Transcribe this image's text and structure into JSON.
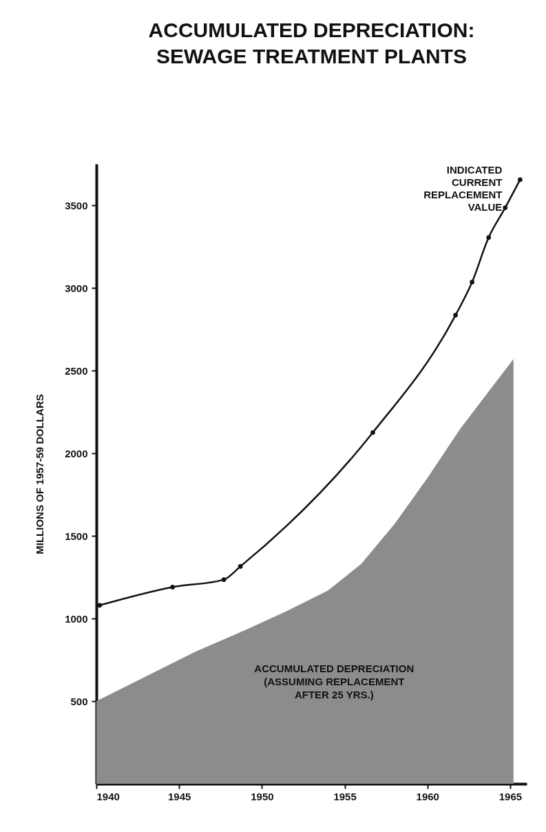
{
  "chart_data": {
    "type": "line",
    "title": [
      "ACCUMULATED DEPRECIATION:",
      "SEWAGE TREATMENT PLANTS"
    ],
    "ylabel": "MILLIONS OF 1957-59 DOLLARS",
    "xlim": [
      1940,
      1966
    ],
    "xticks": [
      1940,
      1945,
      1950,
      1955,
      1960,
      1965
    ],
    "ylim": [
      0,
      3750
    ],
    "yticks": [
      500,
      1000,
      1500,
      2000,
      2500,
      3000,
      3500
    ],
    "line_style": "solid",
    "annotations": [
      {
        "text": "INDICATED\nCURRENT\nREPLACEMENT\nVALUE",
        "x": 1965.6,
        "y": 3655
      }
    ],
    "series": [
      {
        "color": "#111111",
        "marker": "circle",
        "x": [
          1940.2,
          1944.6,
          1947.7,
          1948.7,
          1956.7,
          1961.7,
          1962.7,
          1963.7,
          1964.7,
          1965.6
        ],
        "values": [
          1080,
          1190,
          1235,
          1315,
          2125,
          2835,
          3035,
          3305,
          3485,
          3655
        ]
      },
      {
        "type": "area",
        "name": "ACCUMULATED DEPRECIATION\n(ASSUMING REPLACEMENT\nAFTER 25 YRS.)",
        "color": "#8c8c8c",
        "x": [
          1940,
          1943,
          1946,
          1949,
          1951.5,
          1954,
          1956,
          1958,
          1960,
          1962,
          1965.2
        ],
        "values": [
          500,
          650,
          800,
          930,
          1045,
          1170,
          1330,
          1570,
          1850,
          2150,
          2570
        ]
      }
    ]
  }
}
